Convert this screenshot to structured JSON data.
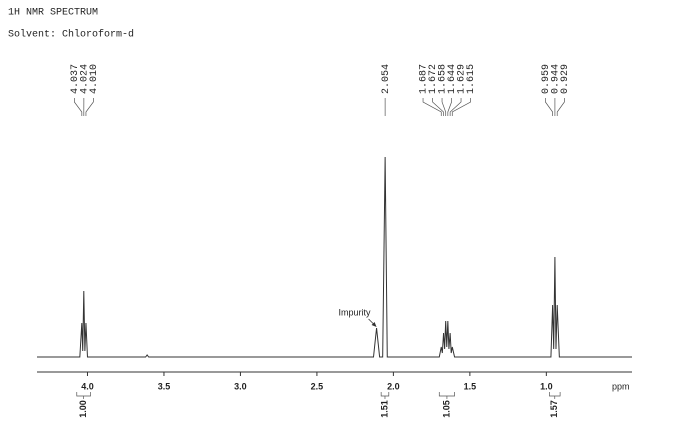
{
  "chart_data": {
    "type": "nmr",
    "title": "1H NMR SPECTRUM",
    "subtitle": "Solvent: Chloroform-d",
    "x_label": "ppm",
    "xlim": [
      4.33,
      0.44
    ],
    "ylim": [
      0,
      100
    ],
    "xticks": [
      {
        "value": 4,
        "label": "4.0"
      },
      3.5,
      {
        "value": 3,
        "label": "3.0"
      },
      2.5,
      {
        "value": 2,
        "label": "2.0"
      },
      1.5,
      {
        "value": 1,
        "label": "1.0"
      }
    ],
    "series": [
      {
        "name": "1H spectrum",
        "color": "#333333",
        "x": [
          4.33,
          4.05,
          4.037,
          4.031,
          4.024,
          4.017,
          4.01,
          4.0,
          3.62,
          3.61,
          3.6,
          2.13,
          2.11,
          2.09,
          2.07,
          2.054,
          2.04,
          1.7,
          1.687,
          1.68,
          1.672,
          1.665,
          1.658,
          1.651,
          1.644,
          1.637,
          1.629,
          1.622,
          1.615,
          1.6,
          0.97,
          0.959,
          0.952,
          0.944,
          0.937,
          0.929,
          0.915,
          0.44
        ],
        "values": [
          0,
          0,
          17,
          3,
          33,
          3,
          17,
          0,
          0,
          1,
          0,
          0,
          14.5,
          0,
          0,
          100,
          0,
          0,
          5,
          2,
          12,
          4,
          18,
          5,
          18,
          4,
          12,
          2,
          5,
          0,
          0,
          26,
          4,
          50,
          4,
          26,
          0,
          0
        ]
      }
    ],
    "peak_labels": [
      4.037,
      4.024,
      {
        "value": 4.01,
        "label": "4.010"
      },
      2.054,
      1.687,
      1.672,
      1.658,
      1.644,
      1.629,
      1.615,
      0.959,
      0.944,
      0.929
    ],
    "integrals": [
      {
        "value": 1,
        "label": "1.00",
        "from": 4.07,
        "to": 3.98
      },
      {
        "value": 1.51,
        "from": 2.08,
        "to": 2.03
      },
      {
        "value": 1.05,
        "from": 1.7,
        "to": 1.6
      },
      {
        "value": 1.57,
        "from": 0.98,
        "to": 0.91
      }
    ],
    "annotations": [
      {
        "text": "Impurity",
        "x": 2.11
      }
    ]
  }
}
